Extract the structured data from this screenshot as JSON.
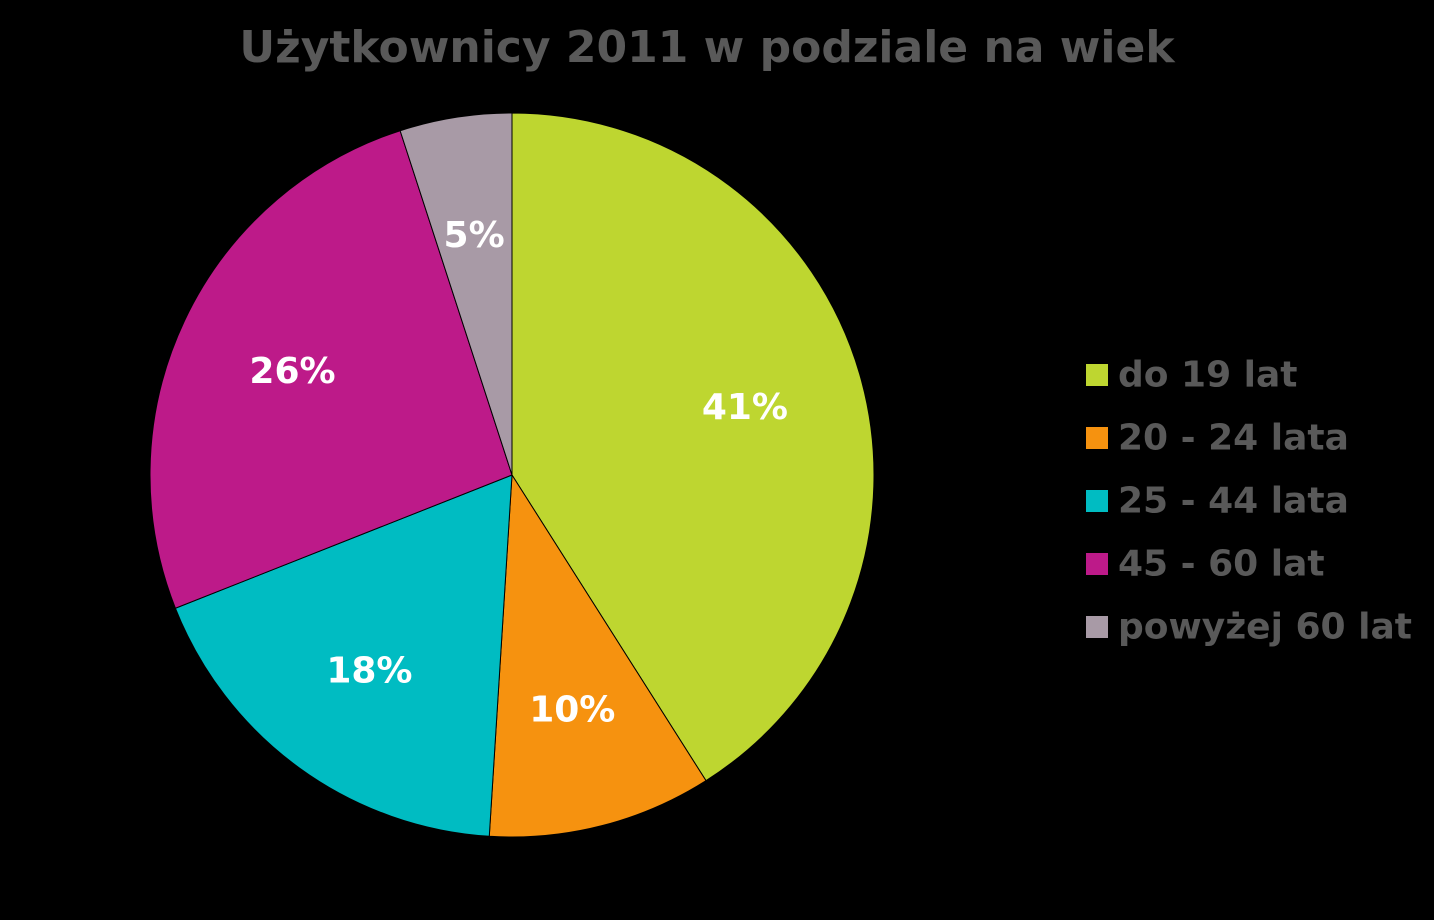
{
  "chart_data": {
    "type": "pie",
    "title": "Użytkownicy 2011 w podziale na wiek",
    "categories": [
      "do 19 lat",
      "20 - 24 lata",
      "25 - 44 lata",
      "45 - 60 lat",
      "powyżej 60 lat"
    ],
    "values": [
      41,
      10,
      18,
      26,
      5
    ],
    "data_labels": [
      "41%",
      "10%",
      "18%",
      "26%",
      "5%"
    ],
    "colors": [
      "#bed630",
      "#f6920f",
      "#00bcc2",
      "#bd1a89",
      "#a89aa6"
    ],
    "start_angle": "12 o'clock",
    "direction": "clockwise",
    "legend_position": "right"
  }
}
